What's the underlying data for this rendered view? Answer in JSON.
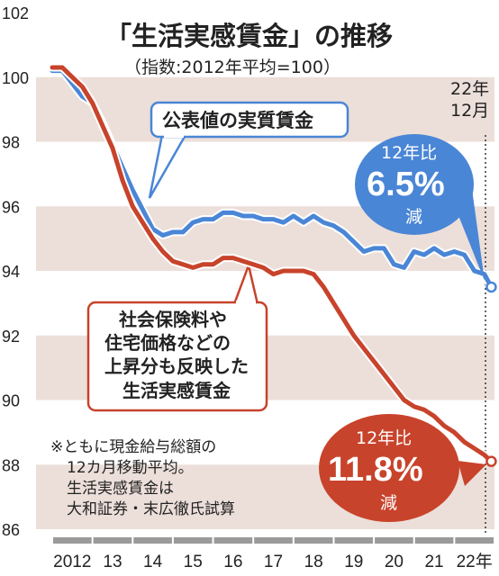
{
  "chart_data": {
    "type": "line",
    "title": "「生活実感賃金」の推移",
    "subtitle": "（指数:2012年平均=100）",
    "ylim": [
      86,
      102
    ],
    "yticks": [
      "102",
      "100",
      "98",
      "96",
      "94",
      "92",
      "90",
      "88",
      "86"
    ],
    "xticks": [
      "2012",
      "13",
      "14",
      "15",
      "16",
      "17",
      "18",
      "19",
      "20",
      "21",
      "22年"
    ],
    "grid": "horizontal bands",
    "x": [
      2012.0,
      2012.25,
      2012.5,
      2012.75,
      2013.0,
      2013.25,
      2013.5,
      2013.75,
      2014.0,
      2014.25,
      2014.5,
      2014.75,
      2015.0,
      2015.25,
      2015.5,
      2015.75,
      2016.0,
      2016.25,
      2016.5,
      2016.75,
      2017.0,
      2017.25,
      2017.5,
      2017.75,
      2018.0,
      2018.25,
      2018.5,
      2018.75,
      2019.0,
      2019.25,
      2019.5,
      2019.75,
      2020.0,
      2020.25,
      2020.5,
      2020.75,
      2021.0,
      2021.25,
      2021.5,
      2021.75,
      2022.0,
      2022.25,
      2022.5,
      2022.75,
      2022.92
    ],
    "series": [
      {
        "name": "公表値の実質賃金",
        "color": "#4a86d6",
        "values": [
          100.2,
          100.2,
          99.8,
          99.4,
          99.2,
          98.6,
          97.9,
          97.2,
          96.5,
          95.9,
          95.3,
          95.1,
          95.2,
          95.2,
          95.5,
          95.6,
          95.6,
          95.8,
          95.8,
          95.7,
          95.7,
          95.6,
          95.6,
          95.5,
          95.7,
          95.5,
          95.7,
          95.5,
          95.4,
          95.2,
          94.9,
          94.6,
          94.7,
          94.7,
          94.2,
          94.1,
          94.6,
          94.5,
          94.7,
          94.5,
          94.6,
          94.5,
          94.0,
          93.9,
          93.5
        ]
      },
      {
        "name": "生活実感賃金",
        "color": "#c8432b",
        "values": [
          100.3,
          100.3,
          100.0,
          99.7,
          99.2,
          98.5,
          97.8,
          96.8,
          96.0,
          95.5,
          95.0,
          94.6,
          94.3,
          94.2,
          94.1,
          94.2,
          94.2,
          94.4,
          94.4,
          94.3,
          94.2,
          94.1,
          93.9,
          94.0,
          94.0,
          94.0,
          93.9,
          93.5,
          93.0,
          92.5,
          92.0,
          91.6,
          91.2,
          90.8,
          90.4,
          90.0,
          89.8,
          89.7,
          89.5,
          89.2,
          89.0,
          88.7,
          88.5,
          88.3,
          88.1
        ]
      }
    ],
    "end_marker_label": "22年\n12月"
  },
  "labels": {
    "end_line1": "22年",
    "end_line2": "12月",
    "blue_label": "公表値の実質賃金",
    "red_label_lines": [
      "社会保険料や",
      "住宅価格などの",
      "上昇分も反映した"
    ],
    "red_label_bold": "生活実感賃金",
    "blue_bubble": {
      "small": "12年比",
      "big": "6.5%",
      "bottom": "減"
    },
    "red_bubble": {
      "small": "12年比",
      "big": "11.8%",
      "bottom": "減"
    },
    "note_lines": [
      "※ともに現金給与総額の",
      "12カ月移動平均。",
      "生活実感賃金は",
      "大和証券・末広徹氏試算"
    ]
  },
  "colors": {
    "blue": "#4a86d6",
    "red": "#c8432b",
    "band": "#ecdfd9",
    "xbar": "#9a9a9a"
  }
}
